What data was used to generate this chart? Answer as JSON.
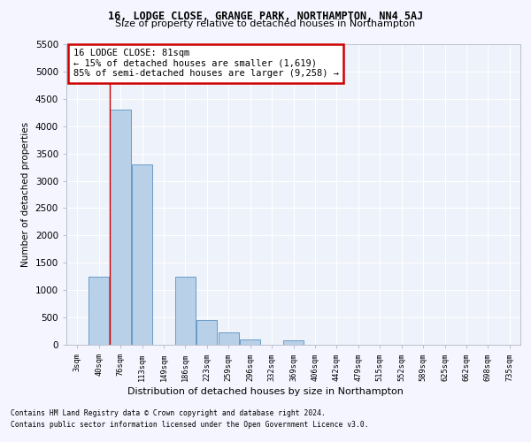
{
  "title1": "16, LODGE CLOSE, GRANGE PARK, NORTHAMPTON, NN4 5AJ",
  "title2": "Size of property relative to detached houses in Northampton",
  "xlabel": "Distribution of detached houses by size in Northampton",
  "ylabel": "Number of detached properties",
  "bar_color": "#b8d0e8",
  "bar_edge_color": "#5a90c0",
  "categories": [
    "3sqm",
    "40sqm",
    "76sqm",
    "113sqm",
    "149sqm",
    "186sqm",
    "223sqm",
    "259sqm",
    "296sqm",
    "332sqm",
    "369sqm",
    "406sqm",
    "442sqm",
    "479sqm",
    "515sqm",
    "552sqm",
    "589sqm",
    "625sqm",
    "662sqm",
    "698sqm",
    "735sqm"
  ],
  "values": [
    0,
    1250,
    4300,
    3300,
    0,
    1250,
    450,
    220,
    90,
    0,
    75,
    0,
    0,
    0,
    0,
    0,
    0,
    0,
    0,
    0,
    0
  ],
  "ylim": [
    0,
    5500
  ],
  "yticks": [
    0,
    500,
    1000,
    1500,
    2000,
    2500,
    3000,
    3500,
    4000,
    4500,
    5000,
    5500
  ],
  "vline_x_index": 2,
  "annotation_text": "16 LODGE CLOSE: 81sqm\n← 15% of detached houses are smaller (1,619)\n85% of semi-detached houses are larger (9,258) →",
  "annotation_box_color": "#ffffff",
  "annotation_box_edge": "#cc0000",
  "footer1": "Contains HM Land Registry data © Crown copyright and database right 2024.",
  "footer2": "Contains public sector information licensed under the Open Government Licence v3.0.",
  "background_color": "#eef2fa",
  "grid_color": "#ffffff",
  "fig_facecolor": "#f5f5ff"
}
